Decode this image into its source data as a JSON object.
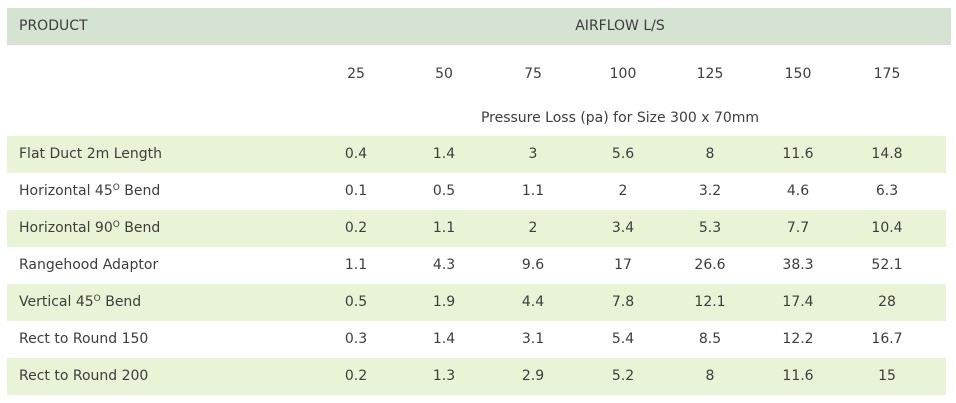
{
  "header": {
    "product_label": "PRODUCT",
    "airflow_label": "AIRFLOW L/S"
  },
  "airflow_values": [
    "25",
    "50",
    "75",
    "100",
    "125",
    "150",
    "175"
  ],
  "subtitle": "Pressure Loss (pa) for Size 300 x 70mm",
  "rows": [
    {
      "name": "Flat Duct 2m Length",
      "sup": "",
      "name_after": "",
      "values": [
        "0.4",
        "1.4",
        "3",
        "5.6",
        "8",
        "11.6",
        "14.8"
      ]
    },
    {
      "name": "Horizontal 45",
      "sup": "O",
      "name_after": " Bend",
      "values": [
        "0.1",
        "0.5",
        "1.1",
        "2",
        "3.2",
        "4.6",
        "6.3"
      ]
    },
    {
      "name": "Horizontal 90",
      "sup": "O",
      "name_after": " Bend",
      "values": [
        "0.2",
        "1.1",
        "2",
        "3.4",
        "5.3",
        "7.7",
        "10.4"
      ]
    },
    {
      "name": "Rangehood Adaptor",
      "sup": "",
      "name_after": "",
      "values": [
        "1.1",
        "4.3",
        "9.6",
        "17",
        "26.6",
        "38.3",
        "52.1"
      ]
    },
    {
      "name": "Vertical 45",
      "sup": "O",
      "name_after": " Bend",
      "values": [
        "0.5",
        "1.9",
        "4.4",
        "7.8",
        "12.1",
        "17.4",
        "28"
      ]
    },
    {
      "name": "Rect to Round 150",
      "sup": "",
      "name_after": "",
      "values": [
        "0.3",
        "1.4",
        "3.1",
        "5.4",
        "8.5",
        "12.2",
        "16.7"
      ]
    },
    {
      "name": "Rect to Round 200",
      "sup": "",
      "name_after": "",
      "values": [
        "0.2",
        "1.3",
        "2.9",
        "5.2",
        "8",
        "11.6",
        "15"
      ]
    }
  ]
}
